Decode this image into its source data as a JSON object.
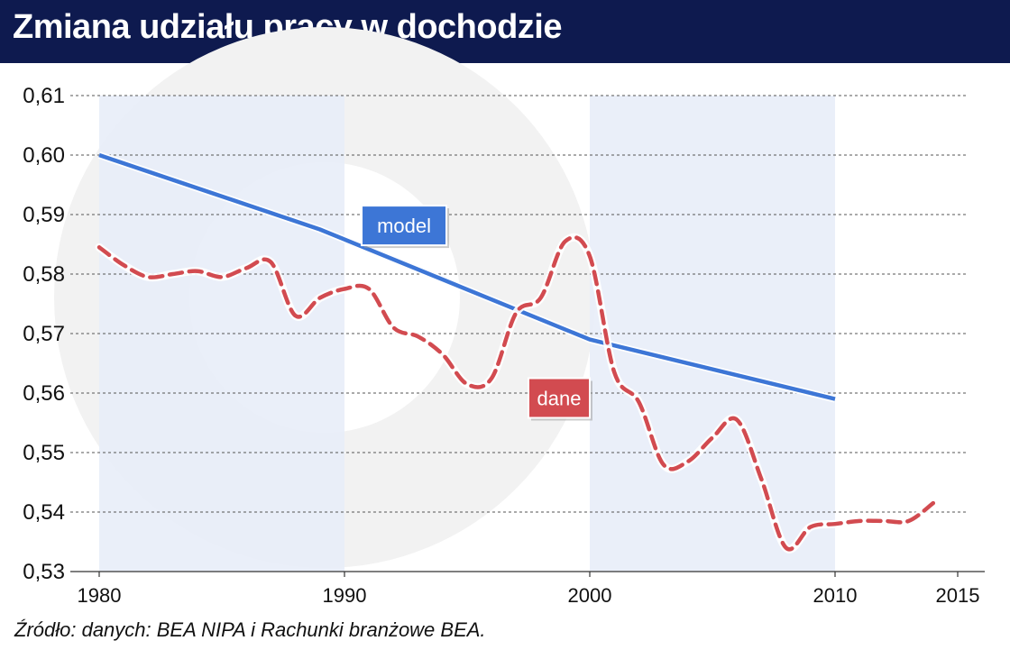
{
  "title": "Zmiana udziału pracy w dochodzie",
  "source": "Źródło: danych: BEA NIPA i Rachunki branżowe BEA.",
  "colors": {
    "title_bg": "#0e1a4f",
    "shade": "#e8eef8",
    "model": "#3d76d6",
    "dane": "#d24b50",
    "grid": "#555555"
  },
  "chart_data": {
    "type": "line",
    "title": "Zmiana udziału pracy w dochodzie",
    "xlabel": "",
    "ylabel": "",
    "xlim": [
      1980,
      2015
    ],
    "ylim": [
      0.53,
      0.61
    ],
    "y_ticks": [
      0.53,
      0.54,
      0.55,
      0.56,
      0.57,
      0.58,
      0.59,
      0.6,
      0.61
    ],
    "y_tick_labels": [
      "0,53",
      "0,54",
      "0,55",
      "0,56",
      "0,57",
      "0,58",
      "0,59",
      "0,60",
      "0,61"
    ],
    "x_ticks": [
      1980,
      1990,
      2000,
      2010,
      2015
    ],
    "x_tick_labels": [
      "1980",
      "1990",
      "2000",
      "2010",
      "2015"
    ],
    "shaded_periods": [
      [
        1980,
        1990
      ],
      [
        2000,
        2010
      ]
    ],
    "grid": "horizontal dashed",
    "series": [
      {
        "name": "model",
        "style": "solid",
        "x": [
          1980,
          1989,
          2000,
          2010
        ],
        "y": [
          0.6,
          0.5875,
          0.569,
          0.559
        ]
      },
      {
        "name": "dane",
        "style": "dashed",
        "x": [
          1980,
          1981,
          1982,
          1983,
          1984,
          1985,
          1986,
          1987,
          1988,
          1989,
          1990,
          1991,
          1992,
          1993,
          1994,
          1995,
          1996,
          1997,
          1998,
          1999,
          2000,
          2001,
          2002,
          2003,
          2004,
          2005,
          2006,
          2007,
          2008,
          2009,
          2010,
          2011,
          2012,
          2013,
          2014
        ],
        "y": [
          0.5845,
          0.5815,
          0.5795,
          0.58,
          0.5805,
          0.5795,
          0.581,
          0.582,
          0.573,
          0.576,
          0.5775,
          0.5775,
          0.571,
          0.5695,
          0.5665,
          0.5615,
          0.5625,
          0.5735,
          0.576,
          0.5855,
          0.583,
          0.5635,
          0.5585,
          0.548,
          0.5485,
          0.5525,
          0.5555,
          0.5455,
          0.534,
          0.5375,
          0.538,
          0.5385,
          0.5385,
          0.5385,
          0.5415
        ]
      }
    ]
  }
}
